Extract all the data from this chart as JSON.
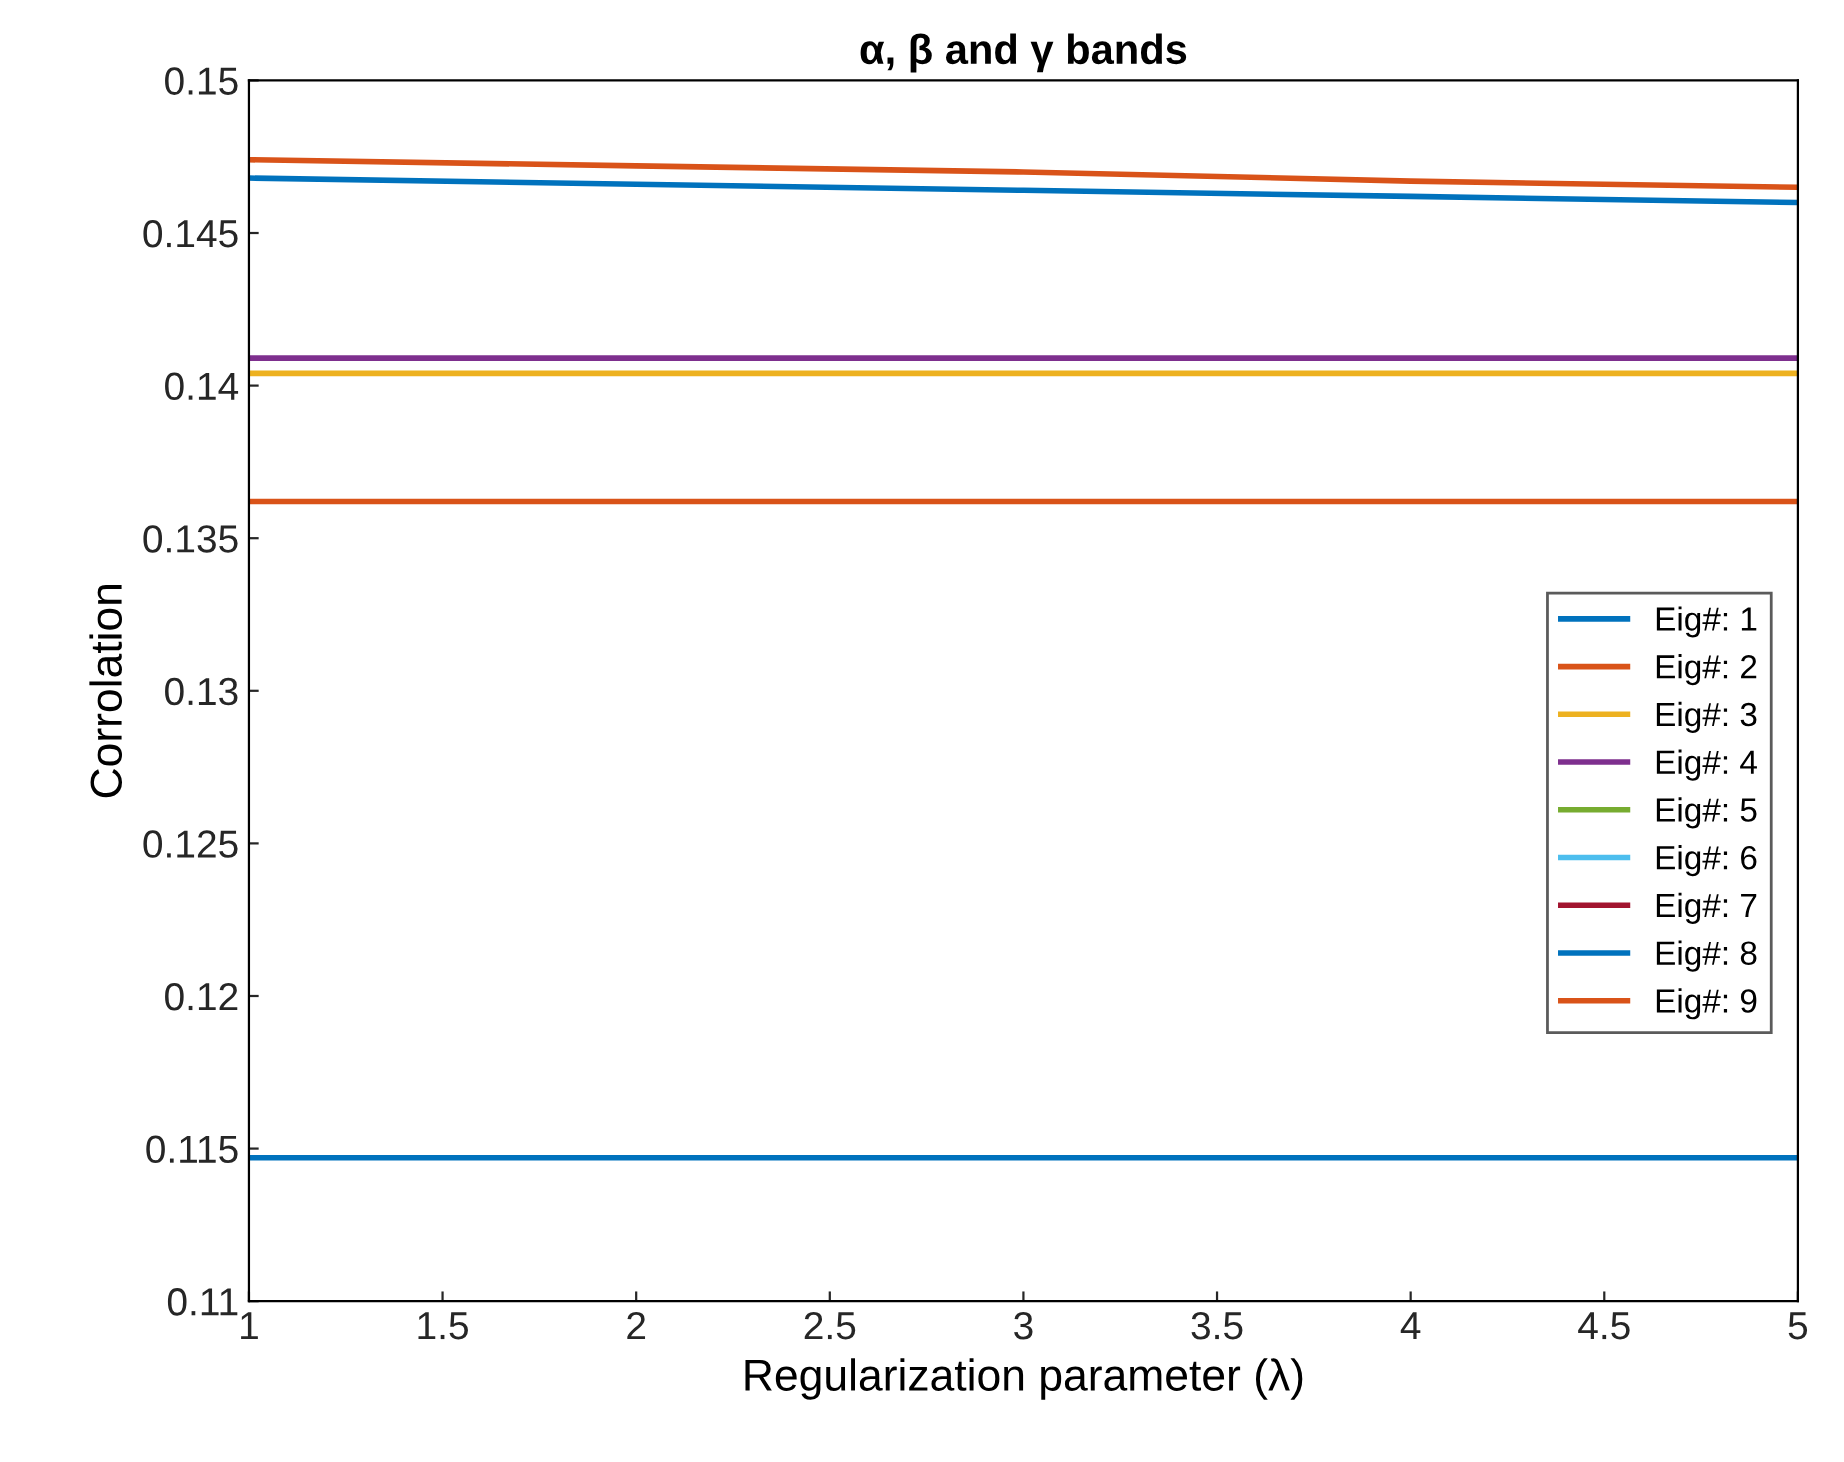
{
  "chart_data": {
    "type": "line",
    "title": "α, β and γ bands",
    "xlabel": "Regularization parameter (λ)",
    "ylabel": "Corrolation",
    "x": [
      1,
      2,
      3,
      4,
      5
    ],
    "series": [
      {
        "name": "Eig#: 1",
        "color": "#0072bd",
        "values": [
          0.1468,
          0.1466,
          0.1464,
          0.1462,
          0.146
        ]
      },
      {
        "name": "Eig#: 2",
        "color": "#d95319",
        "values": [
          0.1474,
          0.1472,
          0.147,
          0.1467,
          0.1465
        ]
      },
      {
        "name": "Eig#: 3",
        "color": "#edb120",
        "values": [
          0.1404,
          0.1404,
          0.1404,
          0.1404,
          0.1404
        ]
      },
      {
        "name": "Eig#: 4",
        "color": "#7e2f8e",
        "values": [
          0.1409,
          0.1409,
          0.1409,
          0.1409,
          0.1409
        ]
      },
      {
        "name": "Eig#: 5",
        "color": "#77ac30",
        "values": [
          null,
          null,
          null,
          null,
          null
        ]
      },
      {
        "name": "Eig#: 6",
        "color": "#4dbeee",
        "values": [
          null,
          null,
          null,
          null,
          null
        ]
      },
      {
        "name": "Eig#: 7",
        "color": "#a2142f",
        "values": [
          null,
          null,
          null,
          null,
          null
        ]
      },
      {
        "name": "Eig#: 8",
        "color": "#0072bd",
        "values": [
          0.1147,
          0.1147,
          0.1147,
          0.1147,
          0.1147
        ]
      },
      {
        "name": "Eig#: 9",
        "color": "#d95319",
        "values": [
          0.1362,
          0.1362,
          0.1362,
          0.1362,
          0.1362
        ]
      }
    ],
    "xlim": [
      1,
      5
    ],
    "xticks": [
      1,
      1.5,
      2,
      2.5,
      3,
      3.5,
      4,
      4.5,
      5
    ],
    "ylim": [
      0.11,
      0.15
    ],
    "yticks": [
      0.11,
      0.115,
      0.12,
      0.125,
      0.13,
      0.135,
      0.14,
      0.145,
      0.15
    ],
    "legend": "right",
    "grid": false
  }
}
